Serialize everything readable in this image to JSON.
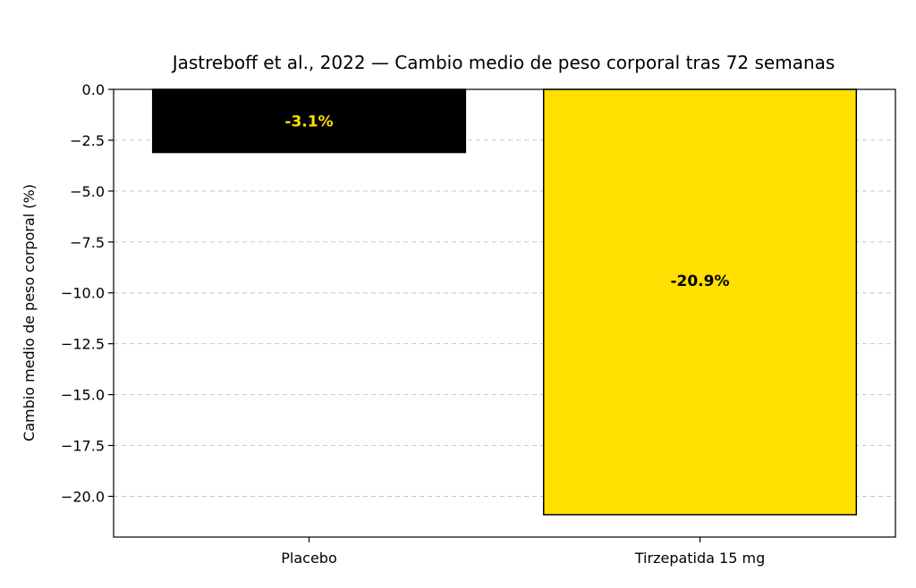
{
  "chart_data": {
    "type": "bar",
    "title": "Jastreboff et al., 2022 — Cambio medio de peso corporal tras 72 semanas",
    "xlabel": "",
    "ylabel": "Cambio medio de peso corporal (%)",
    "categories": [
      "Placebo",
      "Tirzepatida 15 mg"
    ],
    "values": [
      -3.1,
      -20.9
    ],
    "data_labels": [
      "-3.1%",
      "-20.9%"
    ],
    "bar_colors": [
      "#000000",
      "#FFE000"
    ],
    "label_colors": [
      "#FFE000",
      "#000000"
    ],
    "ylim": [
      -22,
      0
    ],
    "yticks": [
      0.0,
      -2.5,
      -5.0,
      -7.5,
      -10.0,
      -12.5,
      -15.0,
      -17.5,
      -20.0
    ],
    "ytick_labels": [
      "0.0",
      "−2.5",
      "−5.0",
      "−7.5",
      "−10.0",
      "−12.5",
      "−15.0",
      "−17.5",
      "−20.0"
    ],
    "grid": "y-dashed",
    "legend": "none"
  }
}
